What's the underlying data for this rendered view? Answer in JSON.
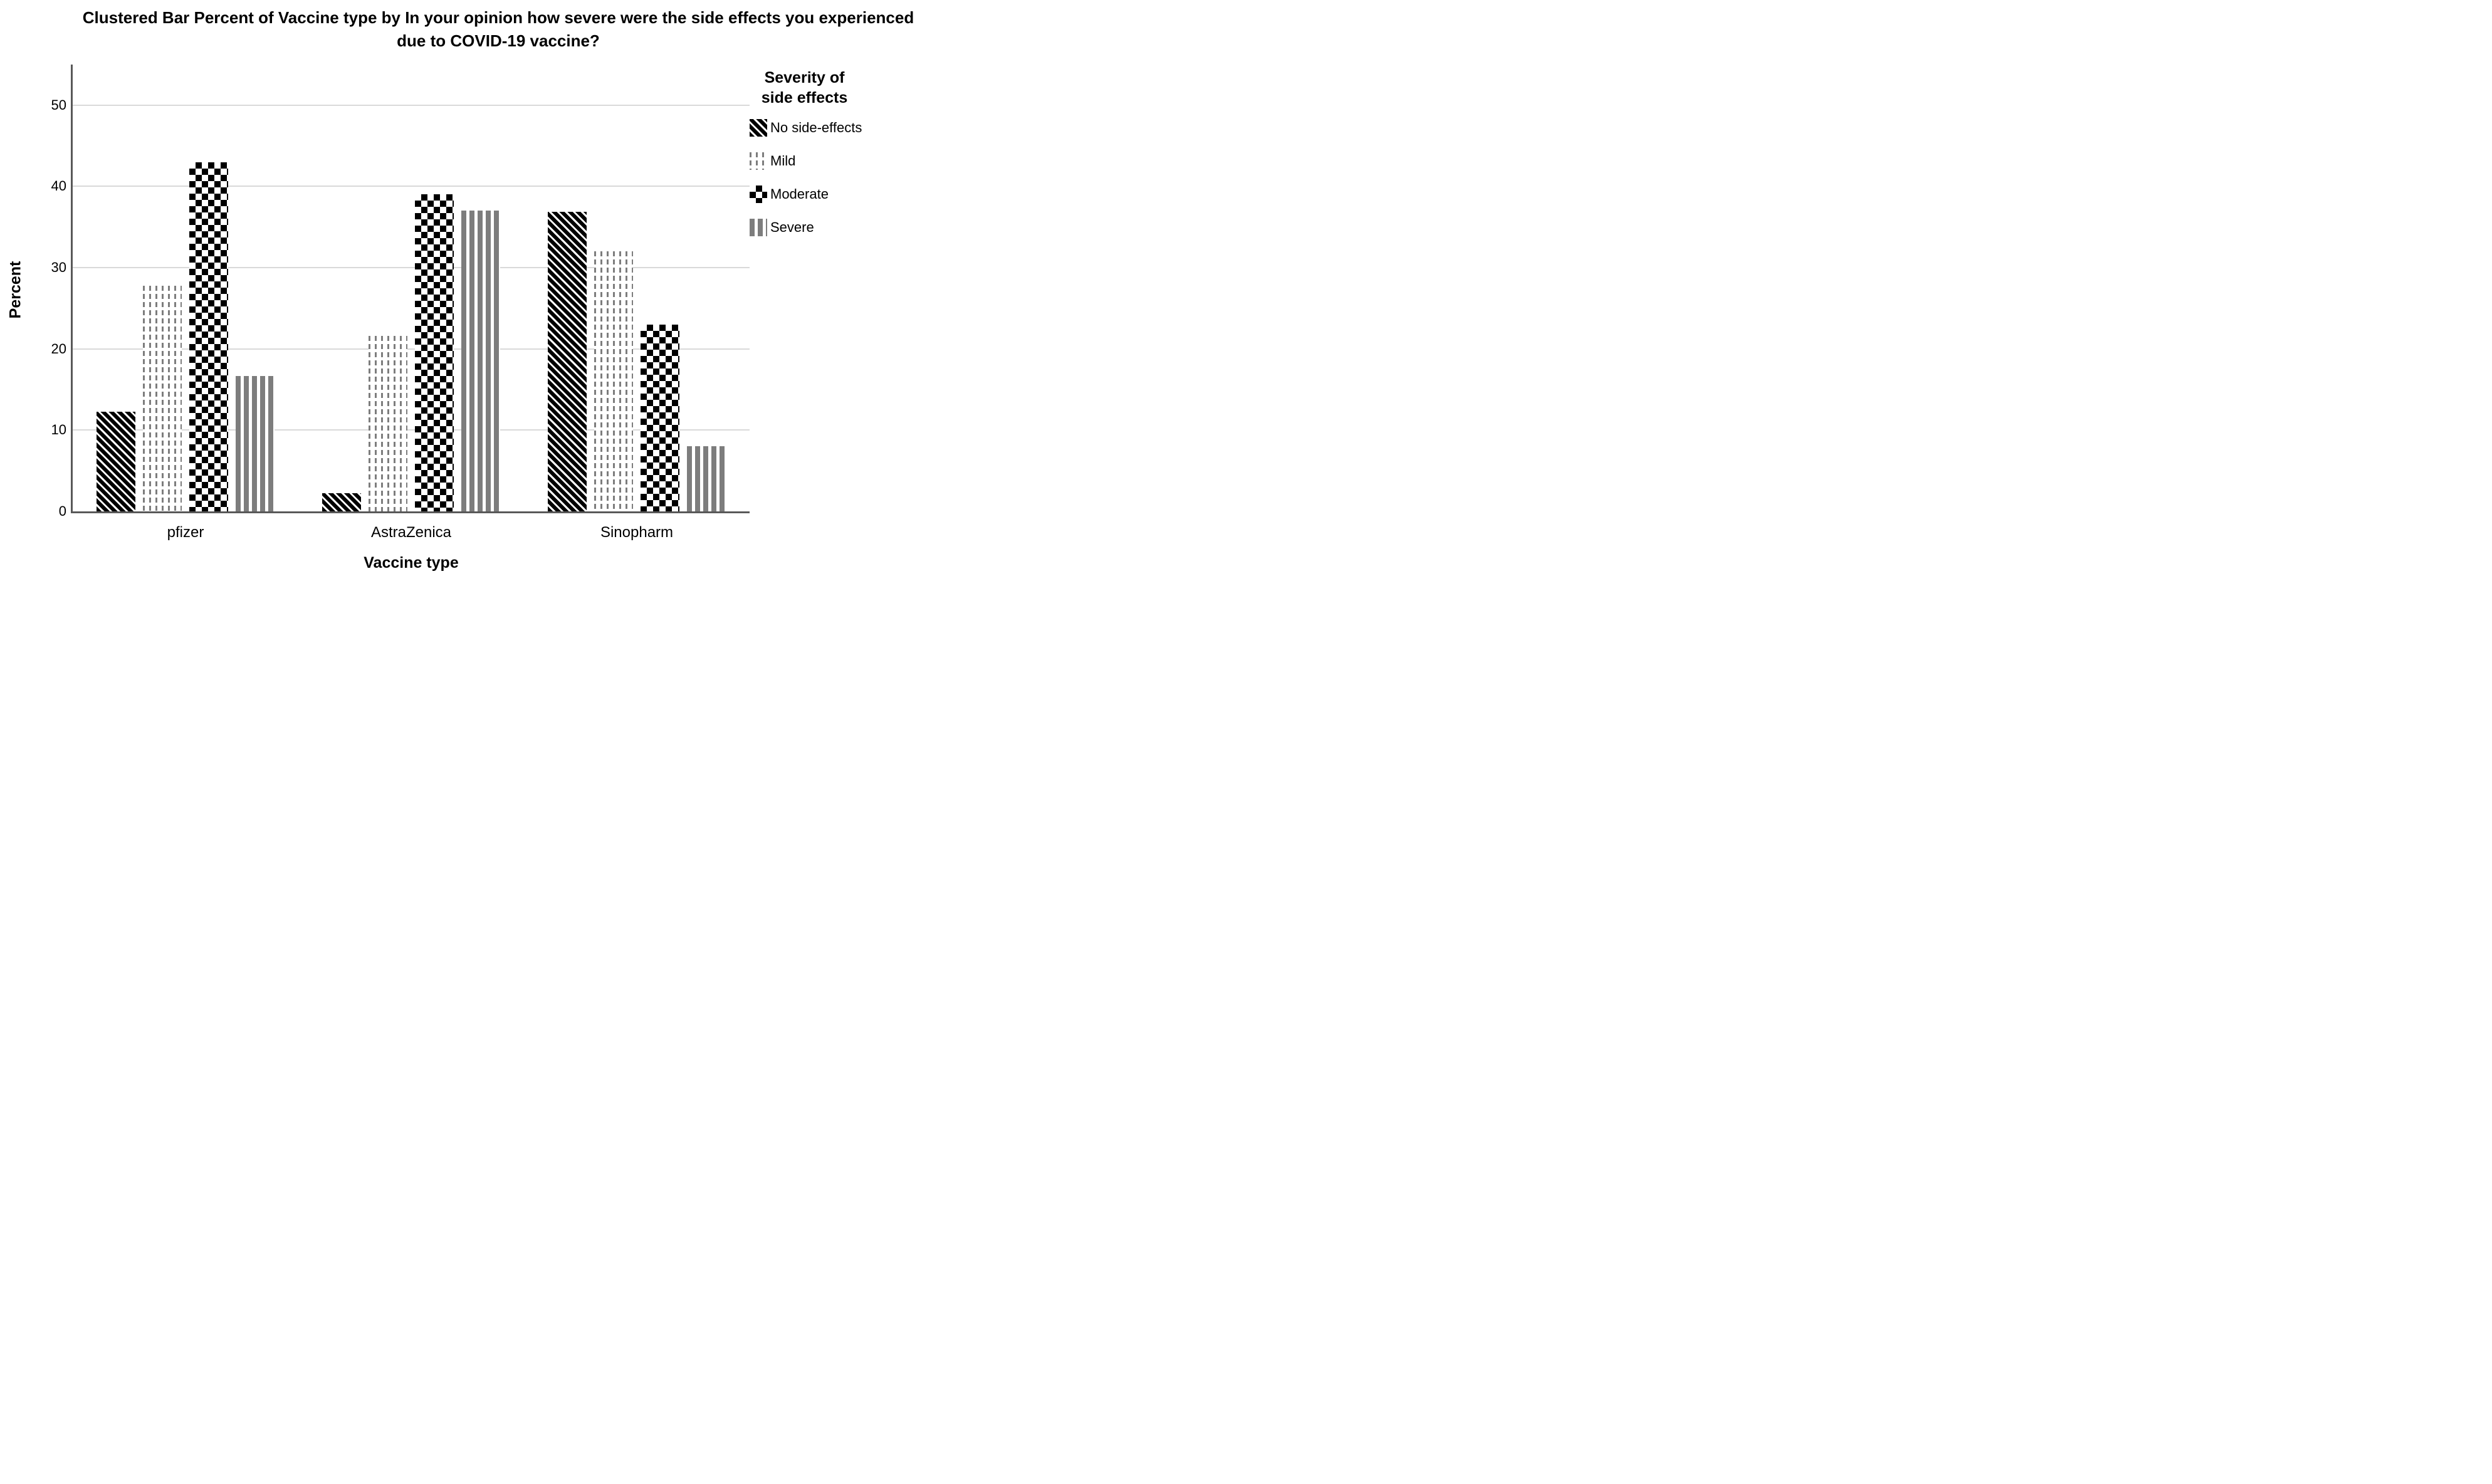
{
  "title": {
    "line1": "Clustered Bar Percent of Vaccine type by In your opinion how severe were the side effects you experienced",
    "line2": "due to COVID-19 vaccine?"
  },
  "chart_data": {
    "type": "bar",
    "title": "Clustered Bar Percent of Vaccine type by In your opinion how severe were the side effects you experienced due to COVID-19 vaccine?",
    "categories": [
      "pfizer",
      "AstraZenica",
      "Sinopharm"
    ],
    "series": [
      {
        "name": "No side-effects",
        "pattern": "diagonal-stripes",
        "values": [
          12.3,
          2.2,
          36.9
        ]
      },
      {
        "name": "Mild",
        "pattern": "dashed-vertical",
        "values": [
          27.8,
          21.6,
          32.0
        ]
      },
      {
        "name": "Moderate",
        "pattern": "checkerboard",
        "values": [
          43.0,
          39.0,
          23.0
        ]
      },
      {
        "name": "Severe",
        "pattern": "vertical-stripes",
        "values": [
          16.7,
          37.0,
          8.0
        ]
      }
    ],
    "xlabel": "Vaccine type",
    "ylabel": "Percent",
    "ylim": [
      0,
      55
    ],
    "yticks": [
      0,
      10,
      20,
      30,
      40,
      50
    ],
    "grid": "horizontal-only",
    "legend_title": "Severity of side effects",
    "legend_position": "right",
    "colors": {
      "foreground": "#000000",
      "pattern_gray": "#7d7d7d",
      "axis_line": "#595959",
      "gridline": "#d9d9d9",
      "background": "#ffffff"
    }
  }
}
